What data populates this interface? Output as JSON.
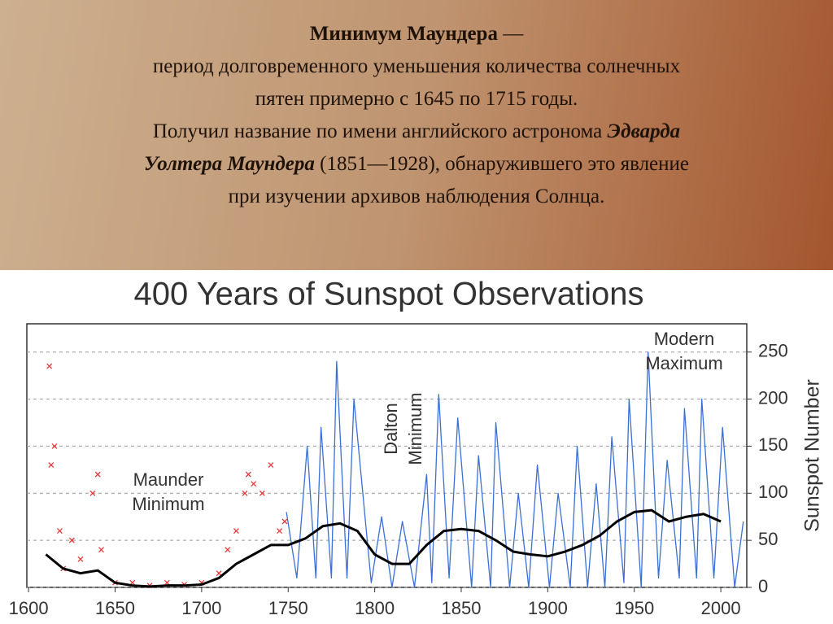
{
  "slide": {
    "lines": [
      [
        {
          "text": "Минимум Маундера",
          "bold": true
        },
        {
          "text": " —"
        }
      ],
      [
        {
          "text": "период долговременного уменьшения количества солнечных"
        }
      ],
      [
        {
          "text": "пятен примерно с 1645 по 1715 годы."
        }
      ],
      [
        {
          "text": "Получил название по имени английского астронома "
        },
        {
          "text": "Эдварда",
          "bold": true,
          "italic": true
        }
      ],
      [
        {
          "text": "Уолтера Маундера",
          "bold": true,
          "italic": true
        },
        {
          "text": " (1851—1928), обнаружившего это явление"
        }
      ],
      [
        {
          "text": "при изучении архивов наблюдения Солнца."
        }
      ]
    ]
  },
  "chart_data": {
    "type": "line",
    "title": "400 Years of Sunspot Observations",
    "y_label": "Sunspot Number",
    "annotations": [
      "Maunder Minimum",
      "Dalton Minimum",
      "Modern Maximum"
    ],
    "xlim": [
      1599,
      2015
    ],
    "ylim": [
      0,
      280
    ],
    "xticks": [
      1600,
      1650,
      1700,
      1750,
      1800,
      1850,
      1900,
      1950,
      2000
    ],
    "yticks": [
      0,
      50,
      100,
      150,
      200,
      250
    ],
    "grid": true,
    "series": [
      {
        "type": "scatter",
        "color": "#e8373a",
        "x": [
          1612,
          1613,
          1615,
          1618,
          1620,
          1625,
          1630,
          1637,
          1640,
          1642,
          1650,
          1660,
          1670,
          1680,
          1690,
          1700,
          1710,
          1715,
          1720,
          1725,
          1727,
          1730,
          1735,
          1740,
          1745,
          1748
        ],
        "values": [
          235,
          130,
          150,
          60,
          20,
          50,
          30,
          100,
          120,
          40,
          5,
          5,
          2,
          5,
          3,
          5,
          15,
          40,
          60,
          100,
          120,
          110,
          100,
          130,
          60,
          70
        ]
      },
      {
        "type": "line",
        "color": "#3a6fd8",
        "width": 1.3,
        "x": [
          1749,
          1755,
          1761,
          1766,
          1769,
          1775,
          1778,
          1784,
          1788,
          1798,
          1804,
          1810,
          1816,
          1823,
          1830,
          1833,
          1837,
          1843,
          1848,
          1856,
          1860,
          1867,
          1870,
          1878,
          1883,
          1889,
          1894,
          1901,
          1906,
          1913,
          1917,
          1923,
          1928,
          1933,
          1937,
          1944,
          1947,
          1954,
          1958,
          1964,
          1969,
          1976,
          1979,
          1986,
          1989,
          1996,
          2001,
          2008,
          2013
        ],
        "values": [
          80,
          10,
          150,
          10,
          170,
          10,
          240,
          10,
          200,
          5,
          75,
          0,
          70,
          0,
          120,
          5,
          205,
          10,
          180,
          0,
          140,
          0,
          175,
          0,
          100,
          0,
          130,
          0,
          100,
          0,
          150,
          0,
          110,
          0,
          160,
          5,
          200,
          0,
          250,
          10,
          135,
          10,
          190,
          10,
          200,
          10,
          170,
          0,
          70
        ]
      },
      {
        "type": "line",
        "color": "#000000",
        "width": 3,
        "x": [
          1610,
          1620,
          1630,
          1640,
          1650,
          1660,
          1670,
          1680,
          1690,
          1700,
          1710,
          1720,
          1730,
          1740,
          1750,
          1760,
          1770,
          1780,
          1790,
          1800,
          1810,
          1820,
          1830,
          1840,
          1850,
          1860,
          1870,
          1880,
          1890,
          1900,
          1910,
          1920,
          1930,
          1940,
          1950,
          1960,
          1970,
          1980,
          1990,
          2000
        ],
        "values": [
          35,
          20,
          15,
          18,
          5,
          2,
          1,
          2,
          2,
          3,
          10,
          25,
          35,
          45,
          45,
          52,
          65,
          68,
          60,
          35,
          25,
          25,
          45,
          60,
          62,
          60,
          50,
          38,
          35,
          33,
          38,
          45,
          55,
          70,
          80,
          82,
          70,
          75,
          78,
          70
        ]
      }
    ]
  }
}
